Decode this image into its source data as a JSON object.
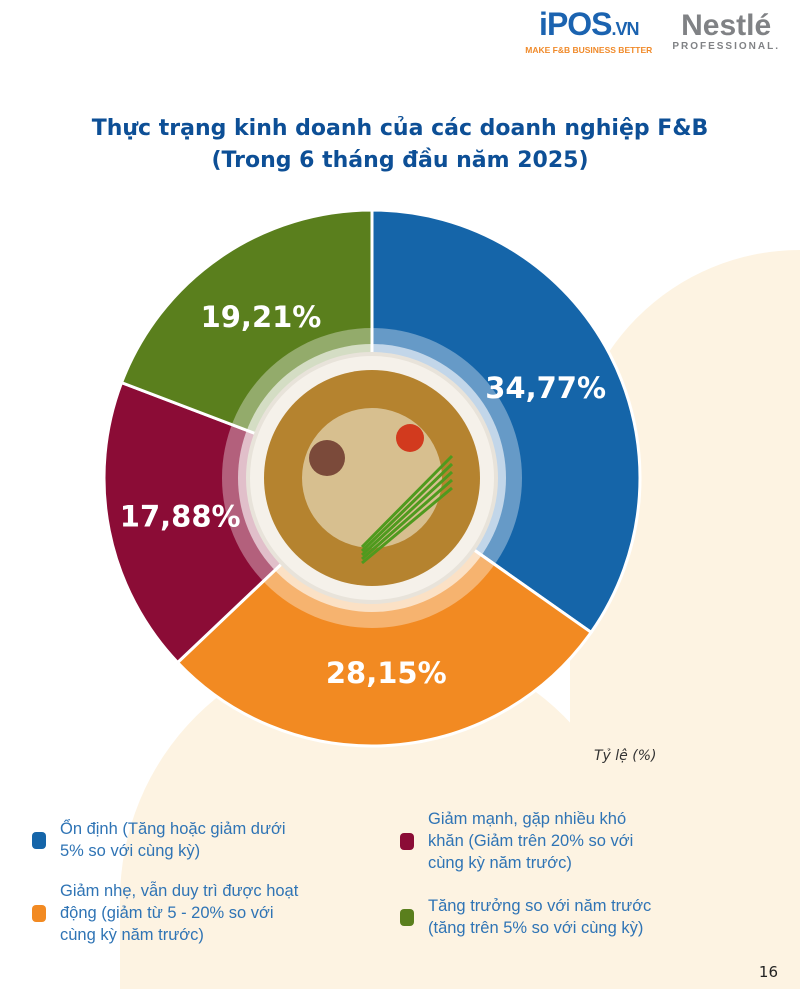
{
  "header": {
    "ipos_logo": {
      "text": "iPOS",
      "suffix": ".VN",
      "tagline": "MAKE F&B BUSINESS BETTER"
    },
    "nestle_logo": {
      "text": "Nestlé",
      "tagline": "PROFESSIONAL."
    }
  },
  "chart_data": {
    "type": "pie",
    "variant": "donut",
    "title_line1": "Thực trạng kinh doanh của các doanh nghiệp F&B",
    "title_line2": "(Trong 6 tháng đầu năm 2025)",
    "unit_label": "Tỷ lệ (%)",
    "slices": [
      {
        "label": "Ổn định (Tăng hoặc giảm dưới 5% so với cùng kỳ)",
        "value": 34.77,
        "display": "34,77%",
        "color": "#1565a9"
      },
      {
        "label": "Giảm nhẹ, vẫn duy trì được hoạt động (giảm từ 5 - 20% so với cùng kỳ năm trước)",
        "value": 28.15,
        "display": "28,15%",
        "color": "#f28a22"
      },
      {
        "label": "Giảm mạnh, gặp nhiều khó khăn (Giảm trên 20% so với cùng kỳ năm trước)",
        "value": 17.88,
        "display": "17,88%",
        "color": "#8b0c36"
      },
      {
        "label": "Tăng trưởng so với năm trước (tăng trên 5% so với cùng kỳ)",
        "value": 19.21,
        "display": "19,21%",
        "color": "#5a7f1d"
      }
    ],
    "legend_position": "bottom"
  },
  "legend_lines": [
    [
      "Ổn định (Tăng hoặc giảm dưới",
      "5% so với cùng kỳ)"
    ],
    [
      "Giảm nhẹ, vẫn duy trì được hoạt",
      "động (giảm từ 5 - 20% so với",
      "cùng kỳ năm trước)"
    ],
    [
      "Giảm mạnh, gặp nhiều khó",
      "khăn (Giảm trên 20% so với",
      "cùng kỳ năm trước)"
    ],
    [
      "Tăng trưởng so với năm trước",
      "(tăng trên 5% so với cùng kỳ)"
    ]
  ],
  "page_number": "16"
}
